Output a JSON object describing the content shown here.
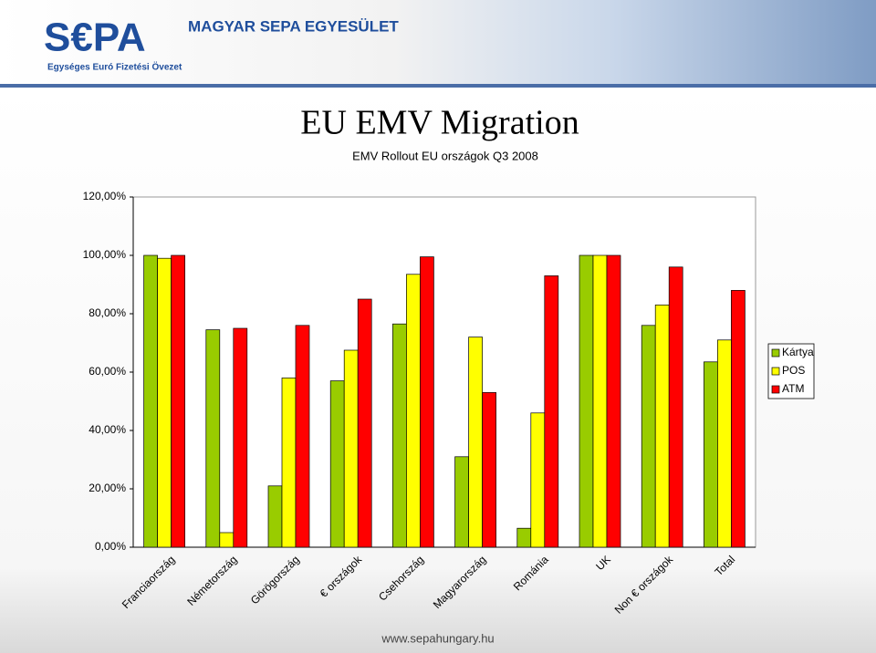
{
  "header": {
    "logo": "S€PA",
    "tagline": "Egységes Euró Fizetési Övezet",
    "organization": "MAGYAR SEPA EGYESÜLET"
  },
  "footer": "www.sepahungary.hu",
  "chart_data": {
    "type": "bar",
    "title": "EU EMV Migration",
    "subtitle": "EMV Rollout EU országok Q3 2008",
    "categories": [
      "Franciaország",
      "Németország",
      "Görögország",
      "€ országok",
      "Csehország",
      "Magyarország",
      "Románia",
      "UK",
      "Non € országok",
      "Total"
    ],
    "series": [
      {
        "name": "Kártya",
        "color": "#99cc00",
        "values": [
          100,
          74.5,
          21,
          57,
          76.5,
          31,
          6.5,
          100,
          76,
          63.5
        ]
      },
      {
        "name": "POS",
        "color": "#ffff00",
        "values": [
          99,
          5,
          58,
          67.5,
          93.5,
          72,
          46,
          100,
          83,
          71
        ]
      },
      {
        "name": "ATM",
        "color": "#ff0000",
        "values": [
          100,
          75,
          76,
          85,
          99.5,
          53,
          93,
          100,
          96,
          88
        ]
      }
    ],
    "ylim": [
      0,
      120
    ],
    "yticks": [
      {
        "value": 0,
        "label": "0,00%"
      },
      {
        "value": 20,
        "label": "20,00%"
      },
      {
        "value": 40,
        "label": "40,00%"
      },
      {
        "value": 60,
        "label": "60,00%"
      },
      {
        "value": 80,
        "label": "80,00%"
      },
      {
        "value": 100,
        "label": "100,00%"
      },
      {
        "value": 120,
        "label": "120,00%"
      }
    ],
    "legend": "right"
  }
}
